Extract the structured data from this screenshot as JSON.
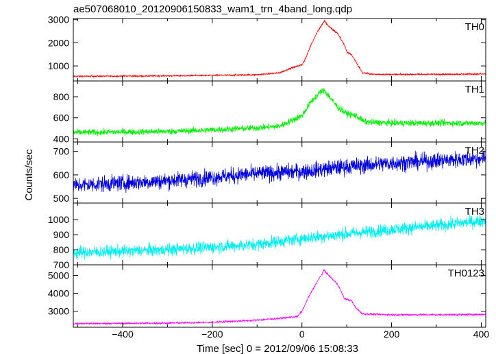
{
  "chart_data": {
    "type": "line",
    "title": "ae507068010_20120906150833_wam1_trn_4band_long.qdp",
    "ylabel": "Counts/sec",
    "xlabel": "Time [sec] 0 = 2012/09/06 15:08:33",
    "xlim": [
      -510,
      410
    ],
    "x_ticks": [
      -400,
      -200,
      0,
      200,
      400
    ],
    "grid": false,
    "series": [
      {
        "name": "TH0",
        "color": "#ff0000",
        "ylim": [
          350,
          3050
        ],
        "y_ticks": [
          1000,
          2000,
          3000
        ],
        "noise": 30,
        "points": [
          [
            -510,
            550
          ],
          [
            -400,
            560
          ],
          [
            -300,
            570
          ],
          [
            -200,
            590
          ],
          [
            -100,
            620
          ],
          [
            -50,
            700
          ],
          [
            -25,
            900
          ],
          [
            0,
            1050
          ],
          [
            10,
            1400
          ],
          [
            20,
            1900
          ],
          [
            35,
            2500
          ],
          [
            50,
            2950
          ],
          [
            60,
            2700
          ],
          [
            80,
            2400
          ],
          [
            95,
            1900
          ],
          [
            100,
            1600
          ],
          [
            110,
            1500
          ],
          [
            120,
            1200
          ],
          [
            135,
            700
          ],
          [
            160,
            640
          ],
          [
            200,
            630
          ],
          [
            300,
            640
          ],
          [
            410,
            650
          ]
        ]
      },
      {
        "name": "TH1",
        "color": "#00ee00",
        "ylim": [
          370,
          950
        ],
        "y_ticks": [
          400,
          600,
          800
        ],
        "noise": 28,
        "points": [
          [
            -510,
            460
          ],
          [
            -300,
            470
          ],
          [
            -200,
            485
          ],
          [
            -100,
            505
          ],
          [
            -50,
            520
          ],
          [
            0,
            620
          ],
          [
            20,
            750
          ],
          [
            40,
            840
          ],
          [
            50,
            860
          ],
          [
            65,
            780
          ],
          [
            80,
            700
          ],
          [
            100,
            640
          ],
          [
            120,
            620
          ],
          [
            140,
            560
          ],
          [
            200,
            550
          ],
          [
            300,
            550
          ],
          [
            410,
            550
          ]
        ]
      },
      {
        "name": "TH2",
        "color": "#0000dd",
        "ylim": [
          480,
          740
        ],
        "y_ticks": [
          500,
          600,
          700
        ],
        "noise": 32,
        "points": [
          [
            -510,
            555
          ],
          [
            -300,
            575
          ],
          [
            -100,
            605
          ],
          [
            0,
            615
          ],
          [
            100,
            635
          ],
          [
            200,
            650
          ],
          [
            300,
            660
          ],
          [
            410,
            672
          ]
        ]
      },
      {
        "name": "TH3",
        "color": "#00eeee",
        "ylim": [
          700,
          1110
        ],
        "y_ticks": [
          700,
          800,
          900,
          1000
        ],
        "noise": 38,
        "points": [
          [
            -510,
            780
          ],
          [
            -300,
            800
          ],
          [
            -100,
            835
          ],
          [
            0,
            875
          ],
          [
            100,
            905
          ],
          [
            200,
            935
          ],
          [
            300,
            960
          ],
          [
            410,
            995
          ]
        ]
      },
      {
        "name": "TH0123",
        "color": "#ff00ff",
        "ylim": [
          2100,
          5600
        ],
        "y_ticks": [
          3000,
          4000,
          5000
        ],
        "noise": 45,
        "points": [
          [
            -510,
            2300
          ],
          [
            -300,
            2330
          ],
          [
            -200,
            2380
          ],
          [
            -100,
            2500
          ],
          [
            -50,
            2600
          ],
          [
            -10,
            2700
          ],
          [
            0,
            3000
          ],
          [
            15,
            3800
          ],
          [
            35,
            4700
          ],
          [
            50,
            5300
          ],
          [
            60,
            5000
          ],
          [
            80,
            4500
          ],
          [
            95,
            3700
          ],
          [
            110,
            3600
          ],
          [
            120,
            3200
          ],
          [
            135,
            2850
          ],
          [
            200,
            2800
          ],
          [
            300,
            2800
          ],
          [
            410,
            2820
          ]
        ]
      }
    ]
  }
}
